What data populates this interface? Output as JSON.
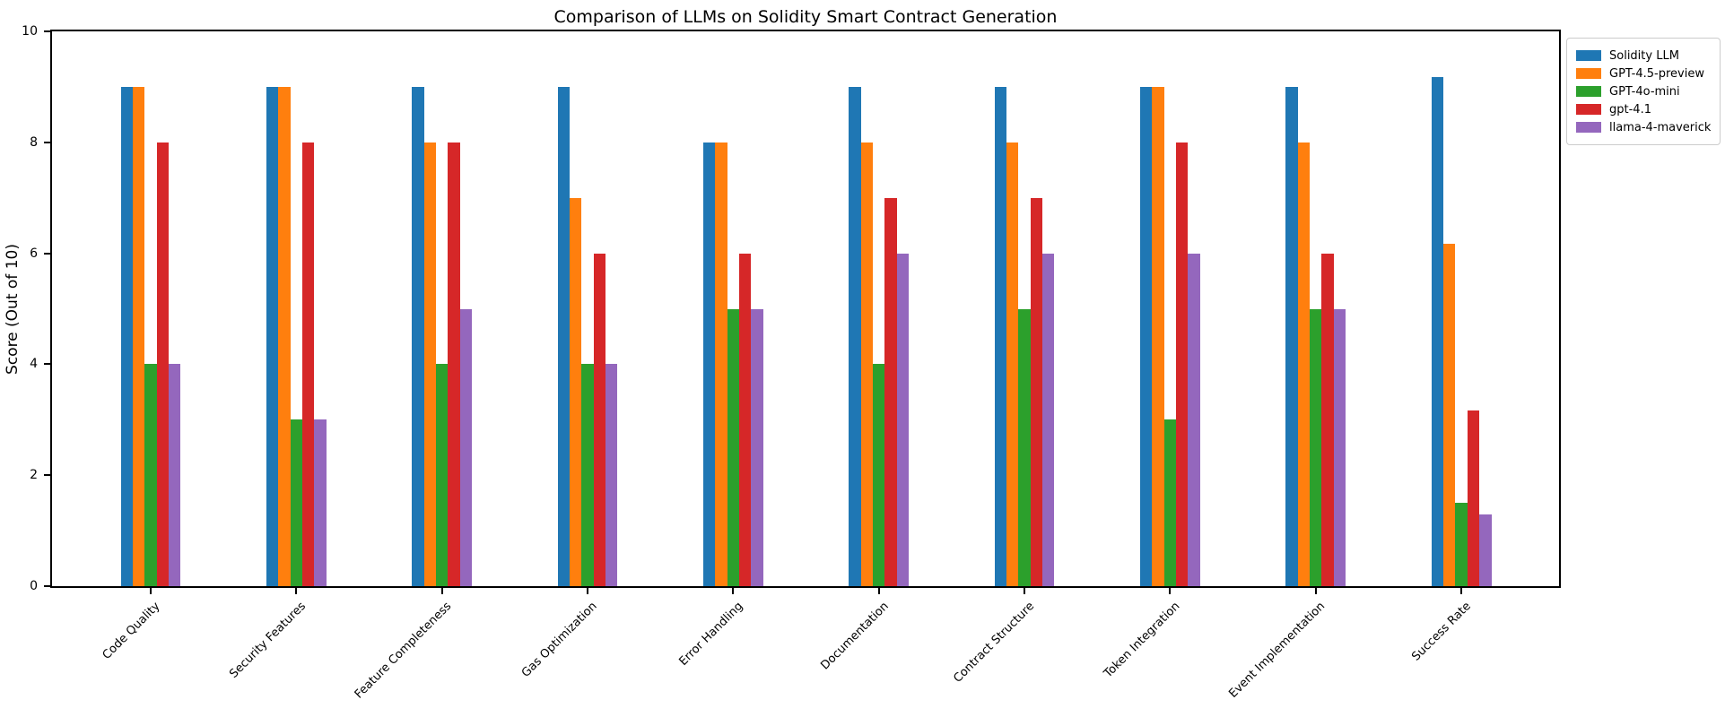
{
  "chart_data": {
    "type": "bar",
    "title": "Comparison of LLMs on Solidity Smart Contract Generation",
    "xlabel": "",
    "ylabel": "Score (Out of 10)",
    "ylim": [
      0,
      10
    ],
    "yticks": [
      0,
      2,
      4,
      6,
      8,
      10
    ],
    "grid": false,
    "legend_position": "upper right, outside plot area",
    "categories": [
      "Code Quality",
      "Security Features",
      "Feature Completeness",
      "Gas Optimization",
      "Error Handling",
      "Documentation",
      "Contract Structure",
      "Token Integration",
      "Event Implementation",
      "Success Rate"
    ],
    "series": [
      {
        "name": "Solidity LLM",
        "color": "#1f77b4",
        "values": [
          9,
          9,
          9,
          9,
          8,
          9,
          9,
          9,
          9,
          9.17
        ]
      },
      {
        "name": "GPT-4.5-preview",
        "color": "#ff7f0e",
        "values": [
          9,
          9,
          8,
          7,
          8,
          8,
          8,
          9,
          8,
          6.17
        ]
      },
      {
        "name": "GPT-4o-mini",
        "color": "#2ca02c",
        "values": [
          4,
          3,
          4,
          4,
          5,
          4,
          5,
          3,
          5,
          1.5
        ]
      },
      {
        "name": "gpt-4.1",
        "color": "#d62728",
        "values": [
          8,
          8,
          8,
          6,
          6,
          7,
          7,
          8,
          6,
          3.17
        ]
      },
      {
        "name": "llama-4-maverick",
        "color": "#9467bd",
        "values": [
          4,
          3,
          5,
          4,
          5,
          6,
          6,
          6,
          5,
          1.3
        ]
      }
    ]
  }
}
